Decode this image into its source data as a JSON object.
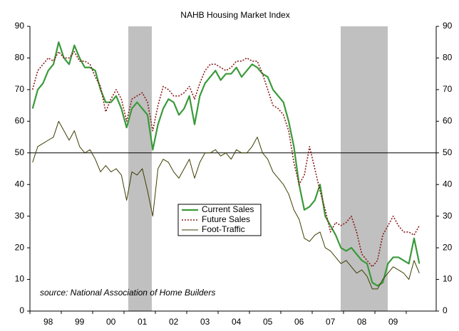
{
  "chart_data": {
    "type": "line",
    "title": "NAHB Housing Market Index",
    "annotation": "source: National Association of Home Builders",
    "categories": [
      null,
      null,
      null,
      "98",
      null,
      null,
      null,
      null,
      null,
      "99",
      null,
      null,
      null,
      null,
      null,
      "00",
      null,
      null,
      null,
      null,
      null,
      "01",
      null,
      null,
      null,
      null,
      null,
      "02",
      null,
      null,
      null,
      null,
      null,
      "03",
      null,
      null,
      null,
      null,
      null,
      "04",
      null,
      null,
      null,
      null,
      null,
      "05",
      null,
      null,
      null,
      null,
      null,
      "06",
      null,
      null,
      null,
      null,
      null,
      "07",
      null,
      null,
      null,
      null,
      null,
      "08",
      null,
      null,
      null,
      null,
      null,
      "09",
      null,
      null,
      null,
      null,
      null
    ],
    "series": [
      {
        "name": "Current Sales",
        "color": "#3a9a3a",
        "width": 2.2,
        "dash": false,
        "values": [
          64,
          70,
          72,
          76,
          78,
          85,
          80,
          78,
          84,
          80,
          77,
          77,
          76,
          70,
          66,
          66,
          68,
          64,
          58,
          64,
          66,
          64,
          62,
          51,
          59,
          64,
          67,
          66,
          62,
          64,
          68,
          59,
          68,
          72,
          74,
          76,
          73,
          75,
          75,
          77,
          74,
          76,
          78,
          77,
          75,
          74,
          70,
          68,
          66,
          60,
          52,
          40,
          32,
          33,
          35,
          40,
          30,
          27,
          24,
          20,
          19,
          20,
          18,
          16,
          15,
          9,
          8,
          9,
          15,
          17,
          17,
          16,
          15,
          23,
          15
        ]
      },
      {
        "name": "Future Sales",
        "color": "#8b1a1a",
        "width": 1.6,
        "dash": true,
        "values": [
          70,
          76,
          78,
          80,
          79,
          82,
          80,
          80,
          82,
          79,
          79,
          78,
          74,
          71,
          63,
          67,
          70,
          67,
          60,
          67,
          68,
          69,
          66,
          57,
          65,
          71,
          70,
          68,
          68,
          69,
          71,
          67,
          72,
          76,
          78,
          78,
          77,
          76,
          77,
          79,
          79,
          80,
          79,
          79,
          75,
          70,
          65,
          64,
          62,
          57,
          47,
          40,
          43,
          52,
          45,
          38,
          32,
          25,
          28,
          27,
          28,
          30,
          25,
          18,
          16,
          14,
          16,
          24,
          27,
          30,
          27,
          25,
          25,
          24,
          27
        ]
      },
      {
        "name": "Foot-Traffic",
        "color": "#3d3d00",
        "width": 1,
        "dash": false,
        "values": [
          47,
          52,
          53,
          54,
          55,
          60,
          57,
          54,
          57,
          52,
          50,
          51,
          48,
          44,
          46,
          44,
          45,
          43,
          35,
          44,
          43,
          45,
          38,
          30,
          45,
          48,
          47,
          44,
          42,
          45,
          48,
          42,
          47,
          50,
          50,
          51,
          49,
          50,
          48,
          51,
          50,
          50,
          52,
          55,
          50,
          48,
          44,
          42,
          40,
          37,
          32,
          29,
          23,
          22,
          24,
          25,
          20,
          19,
          17,
          15,
          16,
          14,
          12,
          13,
          11,
          7,
          7,
          10,
          12,
          14,
          13,
          12,
          10,
          16,
          12
        ]
      }
    ],
    "ylim": [
      0,
      90
    ],
    "yticks": [
      0,
      10,
      20,
      30,
      40,
      50,
      60,
      70,
      80,
      90
    ],
    "y2lim": [
      0,
      90
    ],
    "y2ticks": [
      0,
      10,
      20,
      30,
      40,
      50,
      60,
      70,
      80,
      90
    ],
    "reference_line": 50
  }
}
